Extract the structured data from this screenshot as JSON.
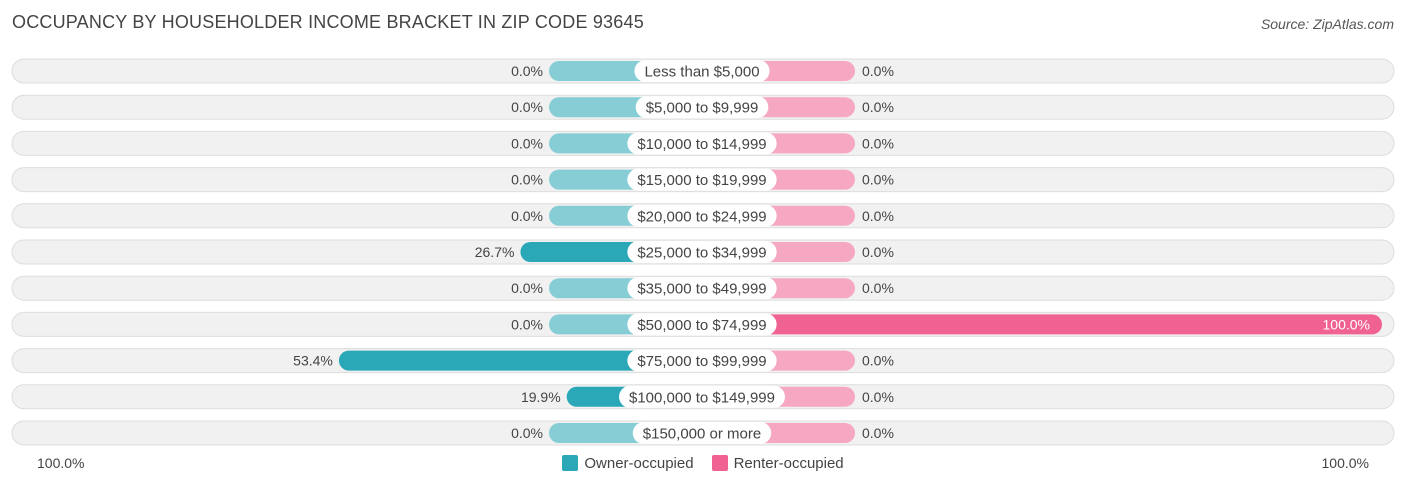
{
  "title": "OCCUPANCY BY HOUSEHOLDER INCOME BRACKET IN ZIP CODE 93645",
  "source": "Source: ZipAtlas.com",
  "colors": {
    "owner": "#2aa8b8",
    "owner_light": "#86cdd6",
    "renter": "#f06292",
    "renter_light": "#f6a8c2",
    "row_bg": "#f1f1f1",
    "row_border": "#dddddd"
  },
  "legend": {
    "owner_label": "Owner-occupied",
    "renter_label": "Renter-occupied"
  },
  "axis": {
    "left_label": "100.0%",
    "right_label": "100.0%"
  },
  "chart_data": {
    "type": "bar",
    "orientation": "horizontal-diverging",
    "categories": [
      "Less than $5,000",
      "$5,000 to $9,999",
      "$10,000 to $14,999",
      "$15,000 to $19,999",
      "$20,000 to $24,999",
      "$25,000 to $34,999",
      "$35,000 to $49,999",
      "$50,000 to $74,999",
      "$75,000 to $99,999",
      "$100,000 to $149,999",
      "$150,000 or more"
    ],
    "series": [
      {
        "name": "Owner-occupied",
        "values": [
          0.0,
          0.0,
          0.0,
          0.0,
          0.0,
          26.7,
          0.0,
          0.0,
          53.4,
          19.9,
          0.0
        ],
        "labels": [
          "0.0%",
          "0.0%",
          "0.0%",
          "0.0%",
          "0.0%",
          "26.7%",
          "0.0%",
          "0.0%",
          "53.4%",
          "19.9%",
          "0.0%"
        ]
      },
      {
        "name": "Renter-occupied",
        "values": [
          0.0,
          0.0,
          0.0,
          0.0,
          0.0,
          0.0,
          0.0,
          100.0,
          0.0,
          0.0,
          0.0
        ],
        "labels": [
          "0.0%",
          "0.0%",
          "0.0%",
          "0.0%",
          "0.0%",
          "0.0%",
          "0.0%",
          "100.0%",
          "0.0%",
          "0.0%",
          "0.0%"
        ]
      }
    ],
    "xlim": [
      -100,
      100
    ],
    "legend_position": "bottom-center"
  }
}
